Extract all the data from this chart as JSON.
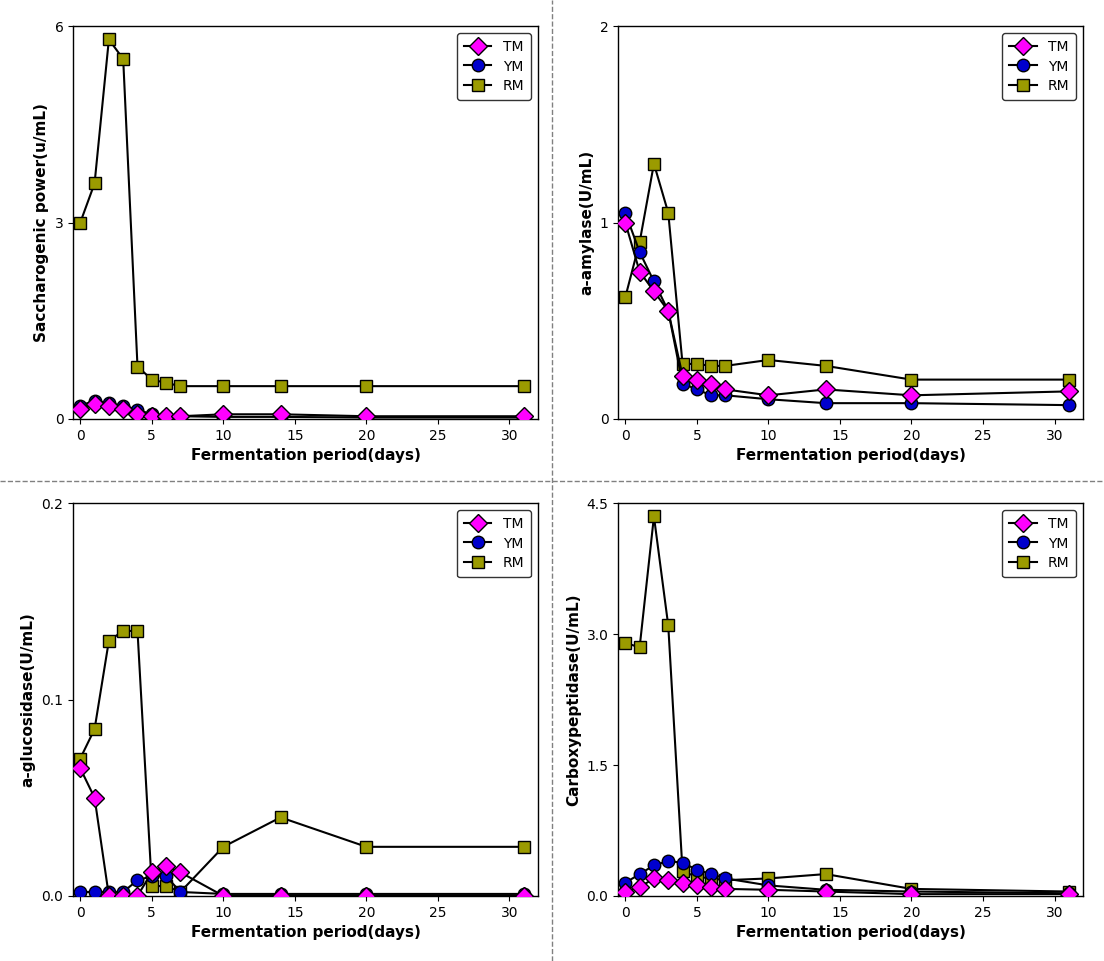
{
  "x_days": [
    0,
    1,
    2,
    3,
    4,
    5,
    6,
    7,
    10,
    14,
    20,
    31
  ],
  "panel1": {
    "ylabel": "Saccharogenic power(u/mL)",
    "ylim": [
      0,
      6
    ],
    "yticks": [
      0,
      3,
      6
    ],
    "TM": [
      0.15,
      0.22,
      0.2,
      0.15,
      0.08,
      0.05,
      0.04,
      0.04,
      0.07,
      0.07,
      0.04,
      0.04
    ],
    "YM": [
      0.2,
      0.28,
      0.24,
      0.2,
      0.14,
      0.07,
      0.05,
      0.04,
      0.03,
      0.03,
      0.02,
      0.02
    ],
    "RM": [
      3.0,
      3.6,
      5.8,
      5.5,
      0.8,
      0.6,
      0.55,
      0.5,
      0.5,
      0.5,
      0.5,
      0.5
    ]
  },
  "panel2": {
    "ylabel": "a-amylase(U/mL)",
    "ylim": [
      0,
      2
    ],
    "yticks": [
      0,
      1,
      2
    ],
    "TM": [
      1.0,
      0.75,
      0.65,
      0.55,
      0.22,
      0.2,
      0.18,
      0.15,
      0.12,
      0.15,
      0.12,
      0.14
    ],
    "YM": [
      1.05,
      0.85,
      0.7,
      0.55,
      0.18,
      0.15,
      0.12,
      0.12,
      0.1,
      0.08,
      0.08,
      0.07
    ],
    "RM": [
      0.62,
      0.9,
      1.3,
      1.05,
      0.28,
      0.28,
      0.27,
      0.27,
      0.3,
      0.27,
      0.2,
      0.2
    ]
  },
  "panel3": {
    "ylabel": "a-glucosidase(U/mL)",
    "ylim": [
      0,
      0.2
    ],
    "yticks": [
      0.0,
      0.1,
      0.2
    ],
    "TM": [
      0.065,
      0.05,
      0.0,
      0.0,
      0.0,
      0.012,
      0.015,
      0.012,
      0.0,
      0.0,
      0.0,
      0.0
    ],
    "YM": [
      0.002,
      0.002,
      0.002,
      0.002,
      0.008,
      0.01,
      0.01,
      0.002,
      0.001,
      0.001,
      0.001,
      0.001
    ],
    "RM": [
      0.07,
      0.085,
      0.13,
      0.135,
      0.135,
      0.005,
      0.005,
      0.002,
      0.025,
      0.04,
      0.025,
      0.025
    ]
  },
  "panel4": {
    "ylabel": "Carboxypeptidase(U/mL)",
    "ylim": [
      0,
      4.5
    ],
    "yticks": [
      0,
      1.5,
      3.0,
      4.5
    ],
    "TM": [
      0.05,
      0.1,
      0.2,
      0.18,
      0.15,
      0.12,
      0.1,
      0.08,
      0.07,
      0.05,
      0.02,
      0.02
    ],
    "YM": [
      0.15,
      0.25,
      0.35,
      0.4,
      0.38,
      0.3,
      0.25,
      0.2,
      0.12,
      0.07,
      0.05,
      0.03
    ],
    "RM": [
      2.9,
      2.85,
      4.35,
      3.1,
      0.28,
      0.22,
      0.2,
      0.18,
      0.2,
      0.25,
      0.08,
      0.05
    ]
  },
  "color_TM": "#FF00FF",
  "color_YM": "#0000CD",
  "color_RM": "#9B9B00",
  "xlabel": "Fermentation period(days)",
  "xlim": [
    -0.5,
    32
  ],
  "xticks": [
    0,
    5,
    10,
    15,
    20,
    25,
    30
  ]
}
